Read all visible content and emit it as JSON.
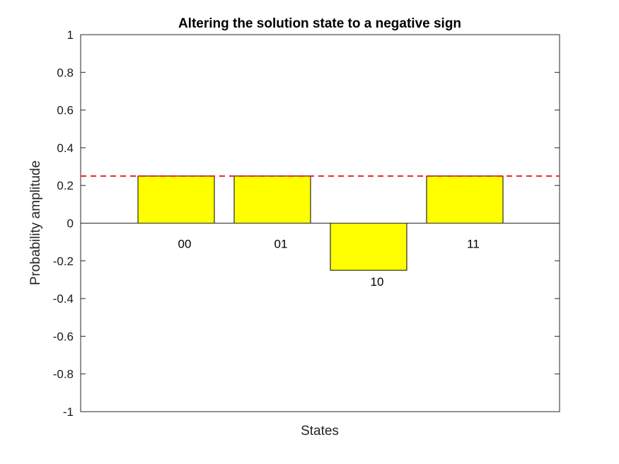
{
  "chart_data": {
    "type": "bar",
    "title": "Altering the solution state to a negative sign",
    "xlabel": "States",
    "ylabel": "Probability amplitude",
    "categories": [
      "00",
      "01",
      "10",
      "11"
    ],
    "values": [
      0.25,
      0.25,
      -0.25,
      0.25
    ],
    "ylim": [
      -1,
      1
    ],
    "yticks": [
      "-1",
      "-0.8",
      "-0.6",
      "-0.4",
      "-0.2",
      "0",
      "0.2",
      "0.4",
      "0.6",
      "0.8",
      "1"
    ],
    "reference_line": {
      "y": 0.25,
      "style": "dashed",
      "color": "#e8252a"
    },
    "bar_color": "#ffff00",
    "grid": false,
    "legend": "none"
  }
}
